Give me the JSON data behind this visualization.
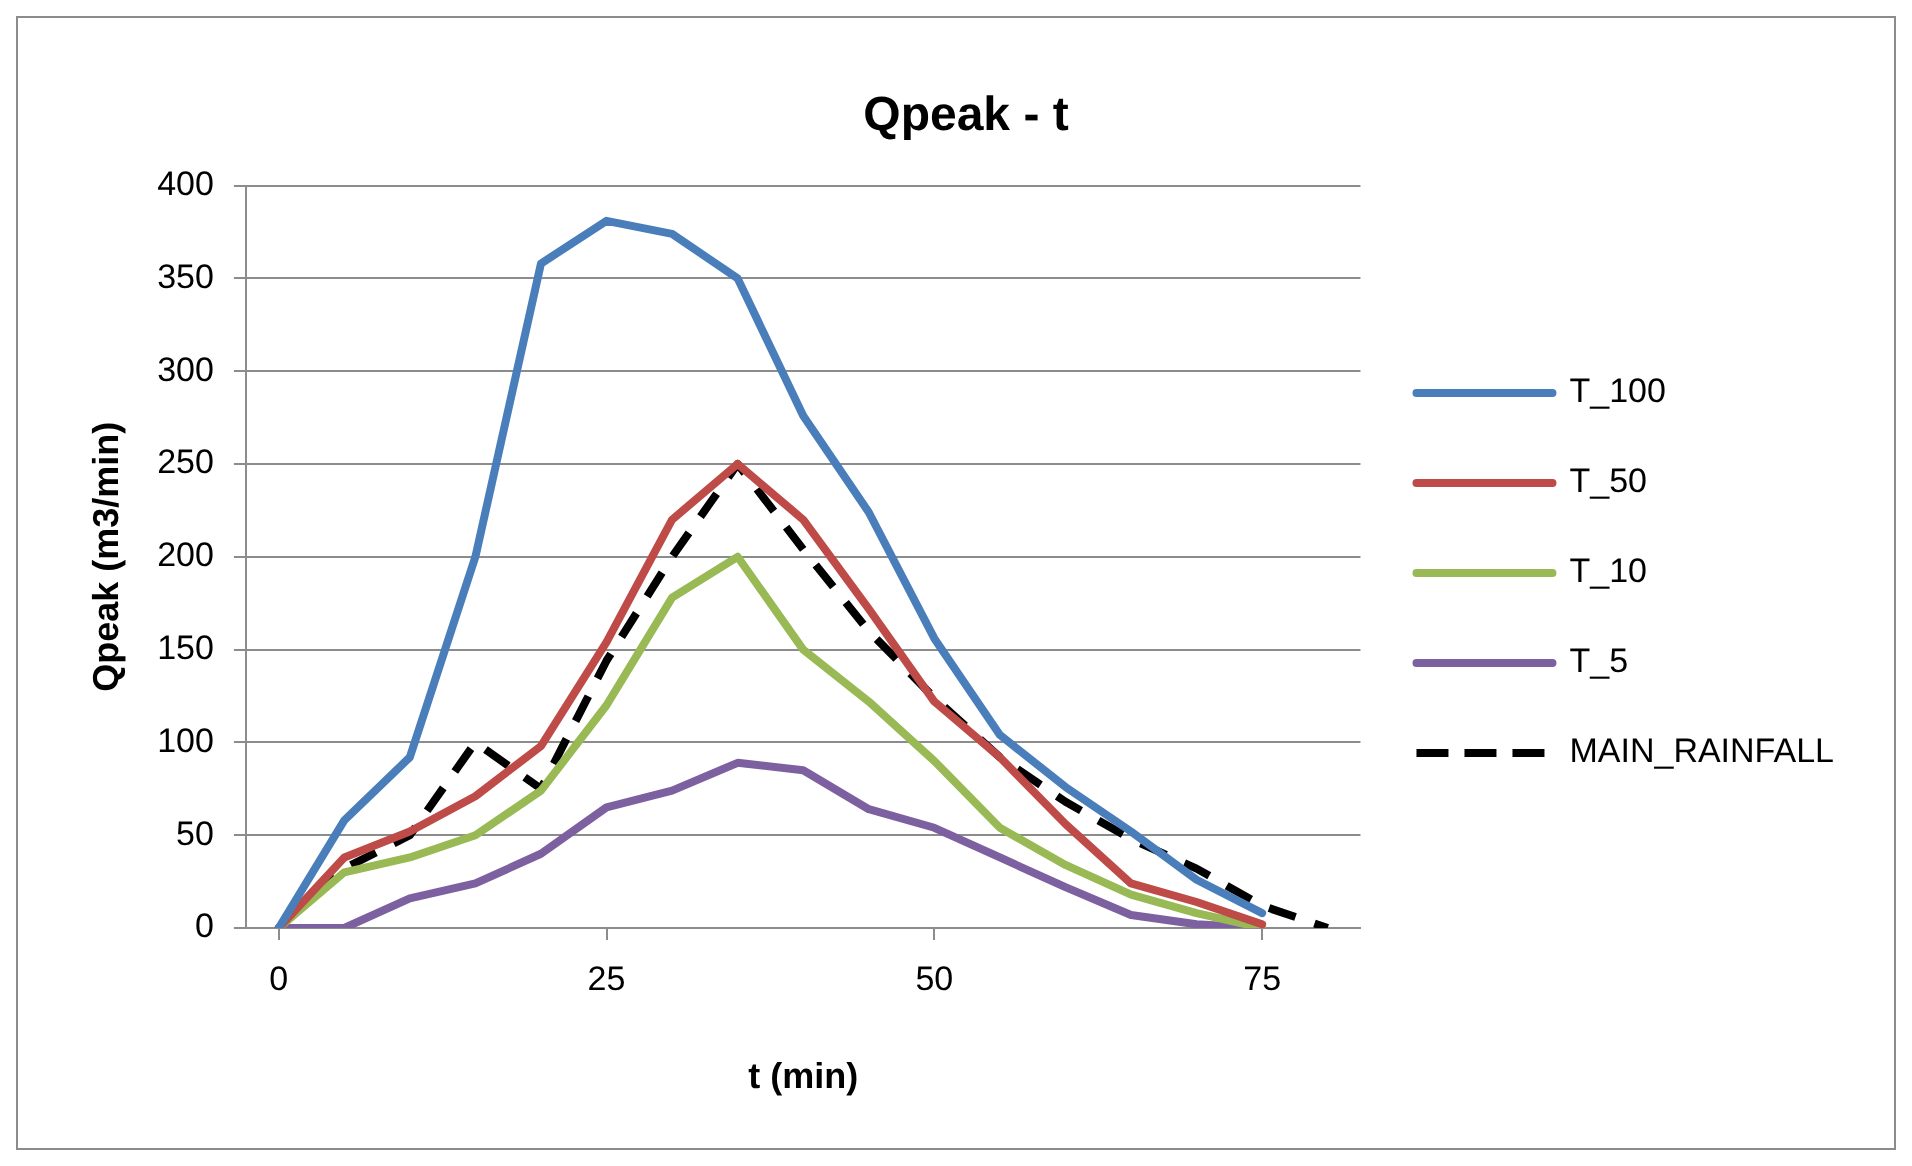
{
  "chart_data": {
    "type": "line",
    "title": "Qpeak - t",
    "xlabel": "t (min)",
    "ylabel": "Qpeak (m3/min)",
    "x": [
      0,
      5,
      10,
      15,
      20,
      25,
      30,
      35,
      40,
      45,
      50,
      55,
      60,
      65,
      70,
      75,
      80
    ],
    "xlim": [
      -2.5,
      82.5
    ],
    "xticks": [
      0,
      25,
      50,
      75
    ],
    "ylim": [
      0,
      400
    ],
    "yticks": [
      0,
      50,
      100,
      150,
      200,
      250,
      300,
      350,
      400
    ],
    "grid": "y",
    "legend": "right",
    "marker": "none",
    "series": [
      {
        "name": "T_100",
        "color": "#4a7ebb",
        "values": [
          0,
          58,
          92,
          200,
          358,
          381,
          374,
          350,
          276,
          224,
          156,
          104,
          76,
          52,
          26,
          8,
          null
        ]
      },
      {
        "name": "T_50",
        "color": "#be4b48",
        "values": [
          0,
          38,
          52,
          71,
          98,
          154,
          220,
          250,
          220,
          172,
          122,
          92,
          56,
          24,
          14,
          2,
          null
        ]
      },
      {
        "name": "T_10",
        "color": "#98b954",
        "values": [
          0,
          30,
          38,
          50,
          74,
          120,
          178,
          200,
          150,
          122,
          90,
          54,
          34,
          18,
          8,
          0,
          null
        ]
      },
      {
        "name": "T_5",
        "color": "#7d60a0",
        "values": [
          0,
          0,
          16,
          24,
          40,
          65,
          74,
          89,
          85,
          64,
          54,
          38,
          22,
          7,
          2,
          0,
          null
        ]
      },
      {
        "name": "MAIN_RAINFALL",
        "color": "#000000",
        "line_style": "dashed",
        "values": [
          0,
          32,
          50,
          100,
          75,
          144,
          200,
          250,
          204,
          160,
          124,
          92,
          68,
          48,
          32,
          12,
          0
        ]
      }
    ]
  }
}
